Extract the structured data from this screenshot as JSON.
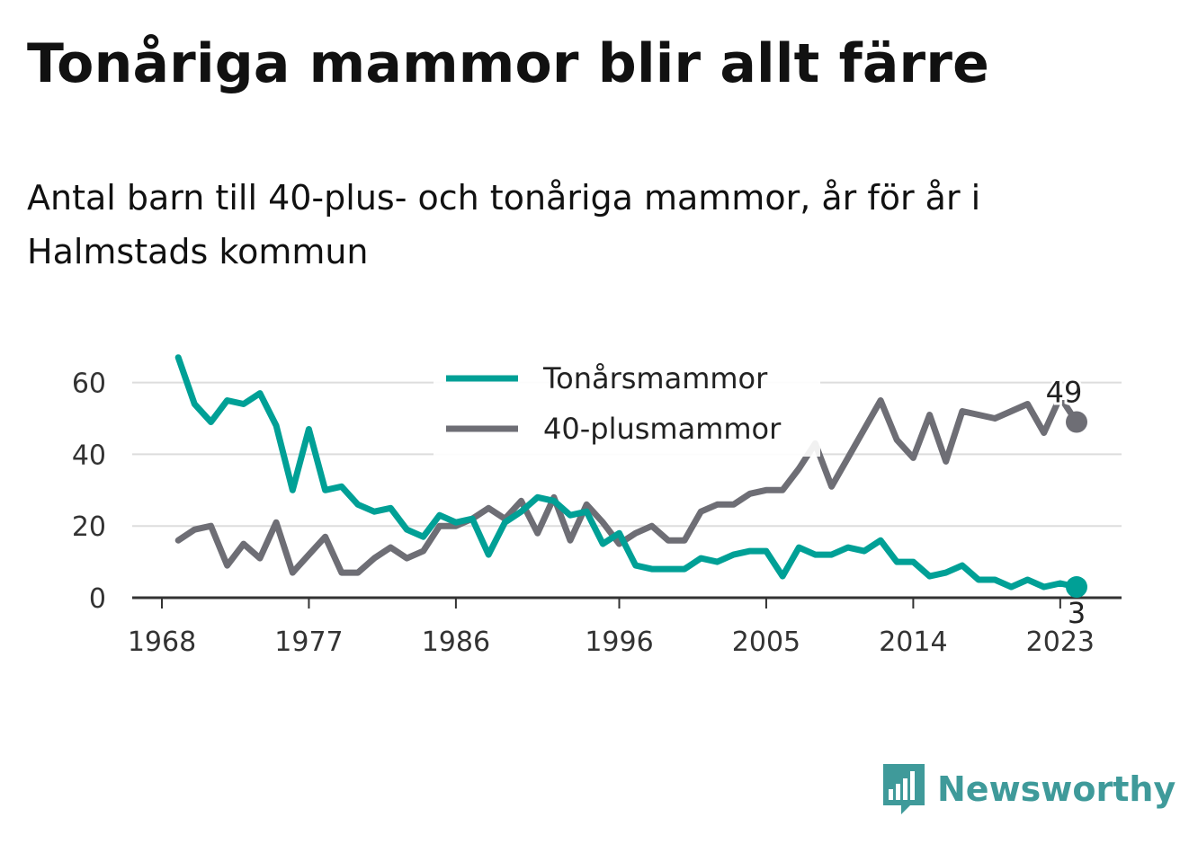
{
  "title": "Tonåriga mammor blir allt färre",
  "subtitle": "Antal barn till 40-plus- och tonåriga mammor, år för år i Halmstads kommun",
  "brand": {
    "name": "Newsworthy",
    "color": "#3f9a9a",
    "icon": "newsworthy-logo-icon"
  },
  "chart_data": {
    "type": "line",
    "title": "Tonåriga mammor blir allt färre",
    "subtitle": "Antal barn till 40-plus- och tonåriga mammor, år för år i Halmstads kommun",
    "xlabel": "",
    "ylabel": "",
    "x_ticks": [
      "1968",
      "1977",
      "1986",
      "1996",
      "2005",
      "2014",
      "2023"
    ],
    "y_ticks": [
      0,
      20,
      40,
      60
    ],
    "xlim": [
      1968,
      2024
    ],
    "ylim": [
      0,
      67
    ],
    "grid": true,
    "legend_position": "top-center",
    "x": [
      1969,
      1970,
      1971,
      1972,
      1973,
      1974,
      1975,
      1976,
      1977,
      1978,
      1979,
      1980,
      1981,
      1982,
      1983,
      1984,
      1985,
      1986,
      1987,
      1988,
      1989,
      1990,
      1991,
      1992,
      1993,
      1994,
      1995,
      1996,
      1997,
      1998,
      1999,
      2000,
      2001,
      2002,
      2003,
      2004,
      2005,
      2006,
      2007,
      2008,
      2009,
      2010,
      2011,
      2012,
      2013,
      2014,
      2015,
      2016,
      2017,
      2018,
      2019,
      2020,
      2021,
      2022,
      2023,
      2024
    ],
    "series": [
      {
        "name": "Tonårsmammor",
        "color": "#00a096",
        "values": [
          67,
          54,
          49,
          55,
          54,
          57,
          48,
          30,
          47,
          30,
          31,
          26,
          24,
          25,
          19,
          17,
          23,
          21,
          22,
          12,
          21,
          24,
          28,
          27,
          23,
          24,
          15,
          18,
          9,
          8,
          8,
          8,
          11,
          10,
          12,
          13,
          13,
          6,
          14,
          12,
          12,
          14,
          13,
          16,
          10,
          10,
          6,
          7,
          9,
          5,
          5,
          3,
          5,
          3,
          4,
          3
        ],
        "end_label": "3"
      },
      {
        "name": "40-plusmammor",
        "color": "#6e6e75",
        "values": [
          16,
          19,
          20,
          9,
          15,
          11,
          21,
          7,
          12,
          17,
          7,
          7,
          11,
          14,
          11,
          13,
          20,
          20,
          22,
          25,
          22,
          27,
          18,
          28,
          16,
          26,
          21,
          15,
          18,
          20,
          16,
          16,
          24,
          26,
          26,
          29,
          30,
          30,
          36,
          43,
          31,
          39,
          47,
          55,
          44,
          39,
          51,
          38,
          52,
          51,
          50,
          52,
          54,
          46,
          56,
          49
        ],
        "end_label": "49"
      }
    ]
  }
}
